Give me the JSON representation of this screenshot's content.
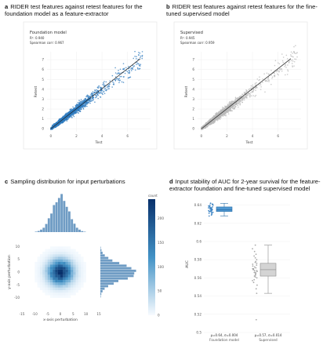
{
  "panels": {
    "a": {
      "letter": "a",
      "title": "RIDER test features against retest features for the foundation model as a feature-extractor"
    },
    "b": {
      "letter": "b",
      "title": "RIDER test features against retest features for the fine-tuned supervised model"
    },
    "c": {
      "letter": "c",
      "title": "Sampling distribution for input perturbations"
    },
    "d": {
      "letter": "d",
      "title": "Input stability of AUC for 2-year survival for the feature-extractor foundation and fine-tuned supervised model"
    }
  },
  "colors": {
    "blue": "#2f7bbf",
    "gray": "#b9b9b9",
    "box_gray": "#d4d4d4",
    "dark": "#222222"
  },
  "chart_data": [
    {
      "id": "a",
      "type": "scatter",
      "title": "Foundation model",
      "annotations": [
        "R²: 0.940",
        "Spearman corr: 0.967"
      ],
      "xlabel": "Test",
      "ylabel": "Retest",
      "xlim": [
        -0.3,
        7.8
      ],
      "ylim": [
        -0.3,
        7.8
      ],
      "xticks": [
        0,
        2,
        4,
        6
      ],
      "yticks": [
        0,
        1,
        2,
        3,
        4,
        5,
        6,
        7
      ],
      "fit_line": [
        [
          0,
          0
        ],
        [
          7,
          7.1
        ]
      ],
      "points_summary": {
        "count": 2200,
        "x_range": [
          0,
          7.2
        ],
        "trend": "y≈x"
      }
    },
    {
      "id": "b",
      "type": "scatter",
      "title": "Supervised",
      "annotations": [
        "R²: 0.945",
        "Spearman corr: 0.959"
      ],
      "xlabel": "Test",
      "ylabel": "Retest",
      "xlim": [
        -0.3,
        7.8
      ],
      "ylim": [
        -0.3,
        7.8
      ],
      "xticks": [
        0,
        2,
        4,
        6
      ],
      "yticks": [
        0,
        1,
        2,
        3,
        4,
        5,
        6,
        7
      ],
      "fit_line": [
        [
          0,
          0
        ],
        [
          7,
          7.1
        ]
      ],
      "points_summary": {
        "count": 2200,
        "x_range": [
          0,
          7.5
        ],
        "trend": "y≈x"
      }
    },
    {
      "id": "c",
      "type": "heatmap",
      "xlabel": "x-axis perturbation",
      "ylabel": "y-axis perturbation",
      "xlim": [
        -15,
        15
      ],
      "ylim": [
        -15,
        15
      ],
      "xticks": [
        -15,
        -10,
        -5,
        0,
        5,
        10,
        15
      ],
      "yticks": [
        -10,
        -5,
        0,
        5,
        10
      ],
      "colorbar": {
        "label": "count",
        "min": 0,
        "max": 240,
        "ticks": [
          0,
          50,
          100,
          150,
          200
        ]
      },
      "distribution": {
        "center": [
          0,
          0
        ],
        "sd": 3.2
      }
    },
    {
      "id": "d",
      "type": "box",
      "ylabel": "AUC",
      "ylim": [
        0.5,
        0.65
      ],
      "yticks": [
        0.5,
        0.52,
        0.54,
        0.56,
        0.58,
        0.6,
        0.62,
        0.64
      ],
      "categories": [
        "Foundation model",
        "Supervised"
      ],
      "series": [
        {
          "name": "Foundation model",
          "annotation": "μ=0.64, σ=0.004",
          "q1": 0.633,
          "median": 0.635,
          "q3": 0.638,
          "whisker_low": 0.628,
          "whisker_high": 0.642,
          "points": [
            0.628,
            0.629,
            0.63,
            0.631,
            0.631,
            0.632,
            0.632,
            0.633,
            0.633,
            0.633,
            0.634,
            0.634,
            0.634,
            0.635,
            0.635,
            0.635,
            0.635,
            0.636,
            0.636,
            0.636,
            0.637,
            0.637,
            0.637,
            0.638,
            0.638,
            0.638,
            0.639,
            0.639,
            0.64,
            0.64,
            0.641,
            0.641,
            0.642,
            0.642
          ]
        },
        {
          "name": "Supervised",
          "annotation": "μ=0.57, σ=0.014",
          "q1": 0.562,
          "median": 0.569,
          "q3": 0.576,
          "whisker_low": 0.543,
          "whisker_high": 0.596,
          "points": [
            0.514,
            0.543,
            0.548,
            0.552,
            0.555,
            0.557,
            0.558,
            0.56,
            0.561,
            0.562,
            0.563,
            0.564,
            0.565,
            0.566,
            0.566,
            0.567,
            0.568,
            0.568,
            0.569,
            0.57,
            0.57,
            0.571,
            0.572,
            0.573,
            0.574,
            0.575,
            0.576,
            0.577,
            0.578,
            0.58,
            0.582,
            0.584,
            0.586,
            0.589,
            0.592,
            0.596
          ]
        }
      ]
    }
  ]
}
